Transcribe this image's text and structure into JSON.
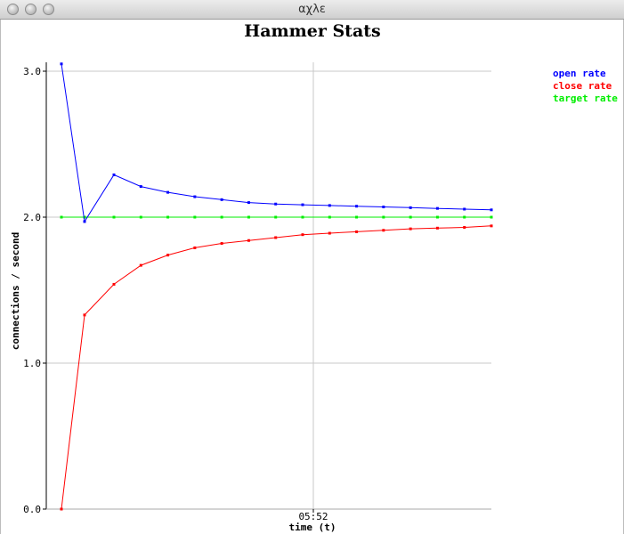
{
  "window": {
    "title": "αχλε"
  },
  "chart_data": {
    "type": "line",
    "title": "Hammer Stats",
    "xlabel": "time (t)",
    "ylabel": "connections / second",
    "x_ticks": [
      "05:52"
    ],
    "ylim": [
      0.0,
      3.05
    ],
    "y_ticks": [
      0.0,
      1.0,
      2.0,
      3.0
    ],
    "y_tick_labels": [
      "0.0",
      "1.0",
      "2.0",
      "3.0"
    ],
    "grid": true,
    "legend_position": "top-right",
    "series": [
      {
        "name": "open rate",
        "color": "#0000ff",
        "values": [
          3.05,
          1.97,
          2.29,
          2.21,
          2.17,
          2.14,
          2.12,
          2.1,
          2.09,
          2.085,
          2.08,
          2.075,
          2.07,
          2.065,
          2.06,
          2.055,
          2.05
        ]
      },
      {
        "name": "close rate",
        "color": "#ff0000",
        "values": [
          0.0,
          1.33,
          1.54,
          1.67,
          1.74,
          1.79,
          1.82,
          1.84,
          1.86,
          1.88,
          1.89,
          1.9,
          1.91,
          1.92,
          1.925,
          1.93,
          1.94
        ]
      },
      {
        "name": "target rate",
        "color": "#00ee00",
        "values": [
          2.0,
          2.0,
          2.0,
          2.0,
          2.0,
          2.0,
          2.0,
          2.0,
          2.0,
          2.0,
          2.0,
          2.0,
          2.0,
          2.0,
          2.0,
          2.0,
          2.0
        ]
      }
    ]
  }
}
